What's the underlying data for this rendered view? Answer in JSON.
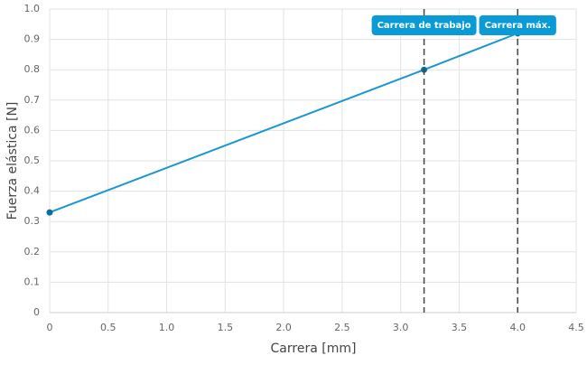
{
  "chart_data": {
    "type": "line",
    "x_label": "Carrera [mm]",
    "y_label": "Fuerza elástica [N]",
    "x": [
      0,
      3.2,
      4.0
    ],
    "series": [
      {
        "color": "#1a96d0",
        "values": [
          0.33,
          0.8,
          0.92
        ]
      }
    ],
    "xlim": [
      0,
      4.5
    ],
    "xticks": [
      0,
      0.5,
      {
        "value": 1,
        "label": "1.0"
      },
      1.5,
      {
        "value": 2,
        "label": "2.0"
      },
      2.5,
      {
        "value": 3,
        "label": "3.0"
      },
      3.5,
      {
        "value": 4,
        "label": "4.0"
      },
      4.5
    ],
    "ylim": [
      0,
      1
    ],
    "yticks": [
      0,
      0.1,
      0.2,
      0.3,
      0.4,
      0.5,
      0.6,
      0.7,
      0.8,
      0.9,
      {
        "value": 1,
        "label": "1.0"
      }
    ],
    "grid": true,
    "annotations": [
      {
        "x": 3.2,
        "label": "Carrera de trabajo",
        "color": "#0a9bd7"
      },
      {
        "x": 4.0,
        "label": "Carrera máx.",
        "color": "#0a9bd7"
      }
    ]
  }
}
